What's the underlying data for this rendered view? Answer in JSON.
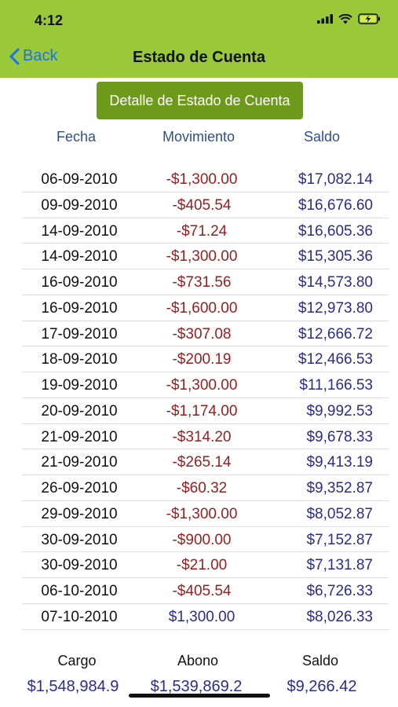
{
  "status_bar": {
    "time": "4:12"
  },
  "nav": {
    "back_label": "Back",
    "title": "Estado de Cuenta"
  },
  "detail_button": {
    "label": "Detalle de Estado de Cuenta"
  },
  "columns": {
    "date": "Fecha",
    "movement": "Movimiento",
    "balance": "Saldo"
  },
  "rows": [
    {
      "date": "06-09-2010",
      "movement": "-$1,300.00",
      "balance": "$17,082.14"
    },
    {
      "date": "09-09-2010",
      "movement": "-$405.54",
      "balance": "$16,676.60"
    },
    {
      "date": "14-09-2010",
      "movement": "-$71.24",
      "balance": "$16,605.36"
    },
    {
      "date": "14-09-2010",
      "movement": "-$1,300.00",
      "balance": "$15,305.36"
    },
    {
      "date": "16-09-2010",
      "movement": "-$731.56",
      "balance": "$14,573.80"
    },
    {
      "date": "16-09-2010",
      "movement": "-$1,600.00",
      "balance": "$12,973.80"
    },
    {
      "date": "17-09-2010",
      "movement": "-$307.08",
      "balance": "$12,666.72"
    },
    {
      "date": "18-09-2010",
      "movement": "-$200.19",
      "balance": "$12,466.53"
    },
    {
      "date": "19-09-2010",
      "movement": "-$1,300.00",
      "balance": "$11,166.53"
    },
    {
      "date": "20-09-2010",
      "movement": "-$1,174.00",
      "balance": "$9,992.53"
    },
    {
      "date": "21-09-2010",
      "movement": "-$314.20",
      "balance": "$9,678.33"
    },
    {
      "date": "21-09-2010",
      "movement": "-$265.14",
      "balance": "$9,413.19"
    },
    {
      "date": "26-09-2010",
      "movement": "-$60.32",
      "balance": "$9,352.87"
    },
    {
      "date": "29-09-2010",
      "movement": "-$1,300.00",
      "balance": "$8,052.87"
    },
    {
      "date": "30-09-2010",
      "movement": "-$900.00",
      "balance": "$7,152.87"
    },
    {
      "date": "30-09-2010",
      "movement": "-$21.00",
      "balance": "$7,131.87"
    },
    {
      "date": "06-10-2010",
      "movement": "-$405.54",
      "balance": "$6,726.33"
    },
    {
      "date": "07-10-2010",
      "movement": "$1,300.00",
      "balance": "$8,026.33"
    }
  ],
  "summary": {
    "charge_label": "Cargo",
    "charge_value": "$1,548,984.9",
    "credit_label": "Abono",
    "credit_value": "$1,539,869.2",
    "balance_label": "Saldo",
    "balance_value": "$9,266.42"
  },
  "colors": {
    "header_bg": "#9ac83b",
    "button_bg": "#6e9a1b",
    "negative": "#9b1c1c",
    "positive": "#2b2b8f",
    "column_header": "#2f4f8f"
  }
}
